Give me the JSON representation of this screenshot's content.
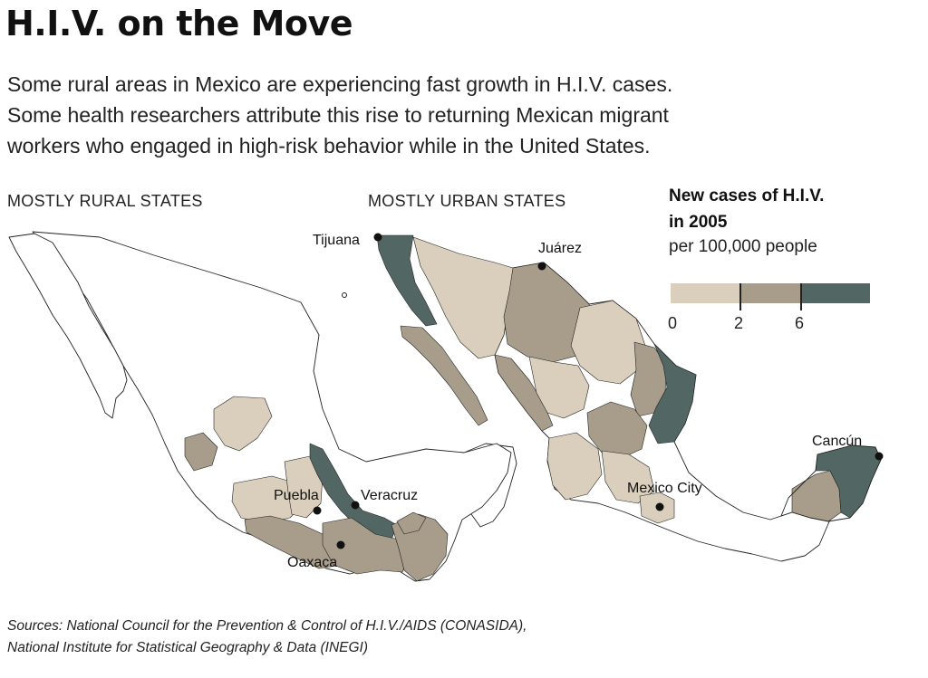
{
  "title": "H.I.V. on the Move",
  "intro_lines": [
    "Some rural areas in Mexico are experiencing fast growth in H.I.V. cases.",
    "Some health researchers attribute this rise to returning Mexican migrant",
    "workers who engaged in high-risk behavior while in the United States."
  ],
  "maps": {
    "rural_label": "MOSTLY RURAL STATES",
    "urban_label": "MOSTLY URBAN STATES"
  },
  "legend": {
    "title_lines": [
      "New cases of H.I.V.",
      "in 2005"
    ],
    "subtitle": "per 100,000 people",
    "breaks": [
      "0",
      "2",
      "6"
    ],
    "colors": {
      "low": "#d9cfbc",
      "mid": "#a89d8b",
      "high": "#526663",
      "outline": "#222222",
      "background": "#ffffff"
    }
  },
  "cities": {
    "tijuana": "Tijuana",
    "juarez": "Juárez",
    "puebla": "Puebla",
    "veracruz": "Veracruz",
    "oaxaca": "Oaxaca",
    "mexico_city": "Mexico City",
    "cancun": "Cancún"
  },
  "sources_lines": [
    "Sources: National Council for the Prevention & Control of H.I.V./AIDS (CONASIDA),",
    "National Institute for Statistical Geography & Data (INEGI)"
  ]
}
